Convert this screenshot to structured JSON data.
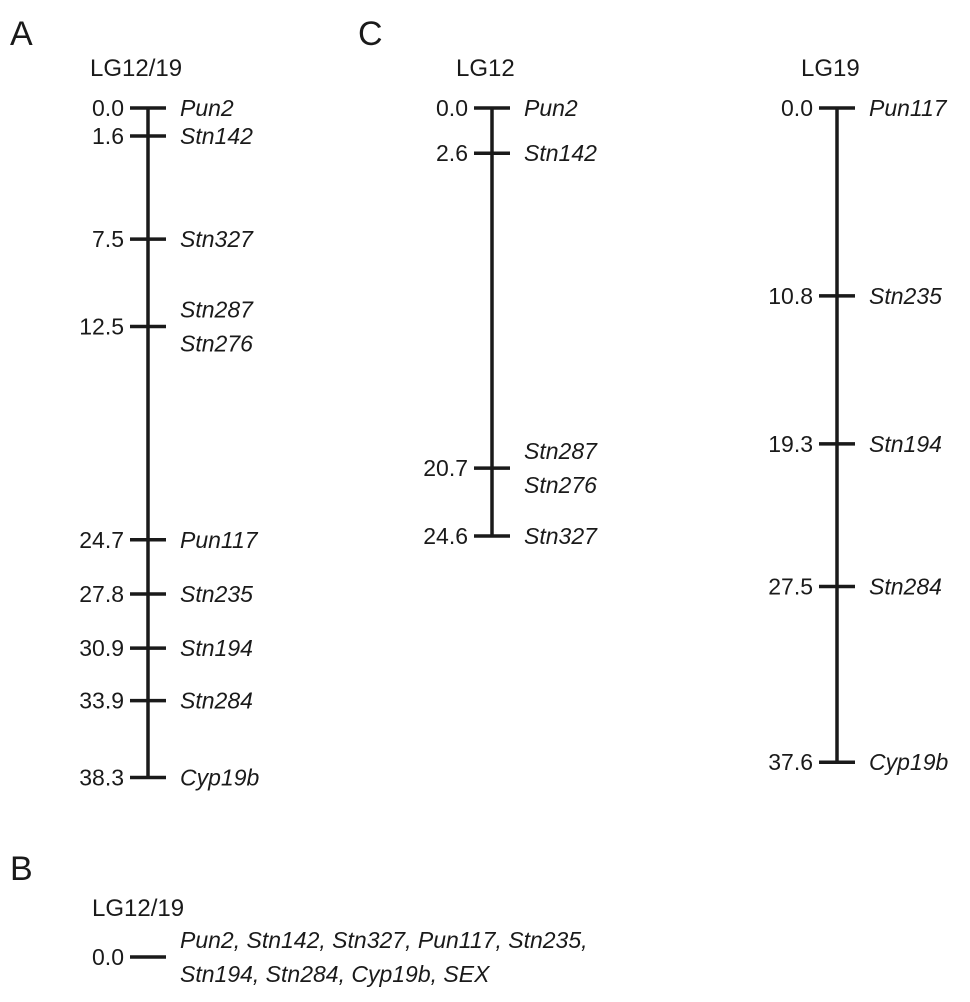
{
  "colors": {
    "ink": "#1a1a1a",
    "background": "#ffffff"
  },
  "panels": [
    {
      "letter": "A",
      "groups": [
        {
          "title": "LG12/19",
          "loci": [
            {
              "pos": "0.0",
              "markers": [
                "Pun2"
              ]
            },
            {
              "pos": "1.6",
              "markers": [
                "Stn142"
              ]
            },
            {
              "pos": "7.5",
              "markers": [
                "Stn327"
              ]
            },
            {
              "pos": "12.5",
              "markers": [
                "Stn287",
                "Stn276"
              ]
            },
            {
              "pos": "24.7",
              "markers": [
                "Pun117"
              ]
            },
            {
              "pos": "27.8",
              "markers": [
                "Stn235"
              ]
            },
            {
              "pos": "30.9",
              "markers": [
                "Stn194"
              ]
            },
            {
              "pos": "33.9",
              "markers": [
                "Stn284"
              ]
            },
            {
              "pos": "38.3",
              "markers": [
                "Cyp19b"
              ]
            }
          ]
        }
      ]
    },
    {
      "letter": "C",
      "groups": [
        {
          "title": "LG12",
          "loci": [
            {
              "pos": "0.0",
              "markers": [
                "Pun2"
              ]
            },
            {
              "pos": "2.6",
              "markers": [
                "Stn142"
              ]
            },
            {
              "pos": "20.7",
              "markers": [
                "Stn287",
                "Stn276"
              ]
            },
            {
              "pos": "24.6",
              "markers": [
                "Stn327"
              ]
            }
          ]
        },
        {
          "title": "LG19",
          "loci": [
            {
              "pos": "0.0",
              "markers": [
                "Pun117"
              ]
            },
            {
              "pos": "10.8",
              "markers": [
                "Stn235"
              ]
            },
            {
              "pos": "19.3",
              "markers": [
                "Stn194"
              ]
            },
            {
              "pos": "27.5",
              "markers": [
                "Stn284"
              ]
            },
            {
              "pos": "37.6",
              "markers": [
                "Cyp19b"
              ]
            }
          ]
        }
      ]
    },
    {
      "letter": "B",
      "groups": [
        {
          "title": "LG12/19",
          "loci": [
            {
              "pos": "0.0",
              "markers": [
                "Pun2, Stn142, Stn327, Pun117, Stn235,",
                "Stn194, Stn284, Cyp19b, SEX"
              ]
            }
          ]
        }
      ]
    }
  ]
}
